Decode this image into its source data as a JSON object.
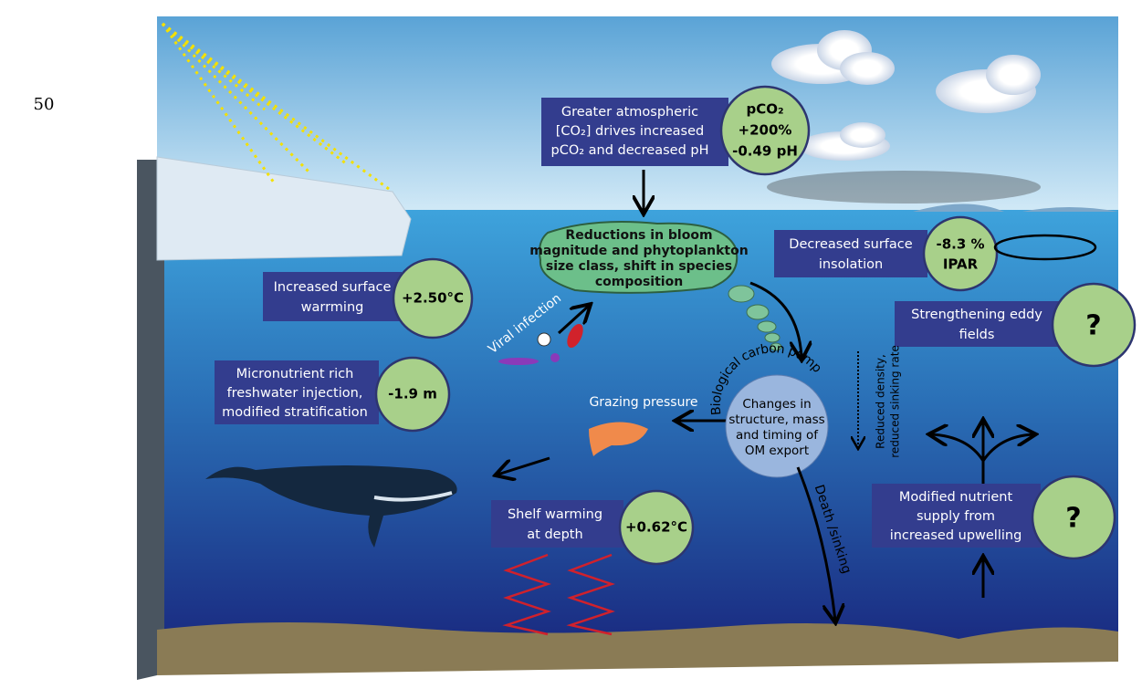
{
  "page_number": "50",
  "nodes": [
    {
      "text": [
        "Greater atmospheric",
        "[CO₂] drives increased",
        "pCO₂ and decreased pH"
      ],
      "badge": [
        "pCO₂",
        "+200%",
        "-0.49 pH"
      ]
    },
    {
      "text": [
        "Reductions in bloom",
        "magnitude and phytoplankton",
        "size class, shift in species",
        "composition"
      ]
    },
    {
      "text": [
        "Decreased surface",
        "insolation"
      ],
      "badge": [
        "-8.3 %",
        "IPAR"
      ]
    },
    {
      "text": [
        "Increased surface",
        "warrming"
      ],
      "badge": [
        "+2.50°C"
      ]
    },
    {
      "text": [
        "Strengthening eddy",
        "fields"
      ],
      "badge": [
        "?"
      ]
    },
    {
      "text": [
        "Micronutrient rich",
        "freshwater injection,",
        "modified stratification"
      ],
      "badge": [
        "-1.9 m"
      ]
    },
    {
      "text": [
        "Changes in",
        "structure, mass",
        "and timing of",
        "OM export"
      ]
    },
    {
      "text": [
        "Shelf warming",
        "at depth"
      ],
      "badge": [
        "+0.62°C"
      ]
    },
    {
      "text": [
        "Modified nutrient",
        "supply from",
        "increased upwelling"
      ],
      "badge": [
        "?"
      ]
    }
  ],
  "labels": {
    "viral_infection": "Viral infection",
    "grazing_pressure": "Grazing pressure",
    "biological_carbon_pump": "Biological carbon pump",
    "reduced_density": [
      "Reduced density,",
      "reduced sinking rate"
    ],
    "death_sinking": "Death /sinking"
  }
}
